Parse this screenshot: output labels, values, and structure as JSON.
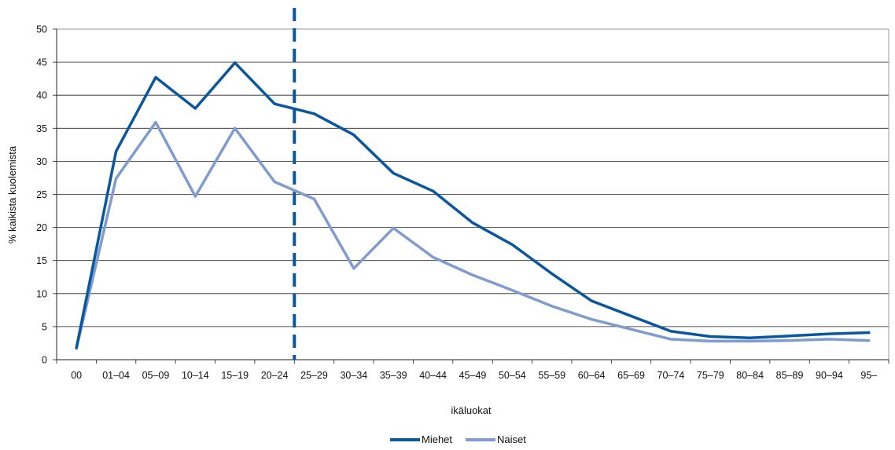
{
  "chart_data": {
    "type": "line",
    "title": "",
    "xlabel": "ikäluokat",
    "ylabel": "% kaikista kuolemista",
    "ylim": [
      0,
      50
    ],
    "yticks": [
      0,
      5,
      10,
      15,
      20,
      25,
      30,
      35,
      40,
      45,
      50
    ],
    "grid": true,
    "legend_position": "bottom-center",
    "categories": [
      "00",
      "01–04",
      "05–09",
      "10–14",
      "15–19",
      "20–24",
      "25–29",
      "30–34",
      "35–39",
      "40–44",
      "45–49",
      "50–54",
      "55–59",
      "60–64",
      "65–69",
      "70–74",
      "75–79",
      "80–84",
      "85–89",
      "90–94",
      "95–"
    ],
    "vertical_marker": {
      "after_category": "20–24",
      "style": "dashed",
      "color": "#0a57a0"
    },
    "series": [
      {
        "name": "Miehet",
        "color": "#0a57a0",
        "values": [
          1.8,
          31.5,
          42.7,
          38.0,
          44.9,
          38.7,
          37.2,
          34.0,
          28.2,
          25.5,
          20.7,
          17.4,
          13.0,
          8.9,
          6.6,
          4.3,
          3.5,
          3.3,
          3.6,
          3.9,
          4.1
        ]
      },
      {
        "name": "Naiset",
        "color": "#7f9bd0",
        "values": [
          1.7,
          27.4,
          35.9,
          24.7,
          35.0,
          26.9,
          24.3,
          13.8,
          19.9,
          15.5,
          12.8,
          10.5,
          8.1,
          6.1,
          4.6,
          3.1,
          2.8,
          2.8,
          2.9,
          3.1,
          2.9
        ]
      }
    ]
  }
}
